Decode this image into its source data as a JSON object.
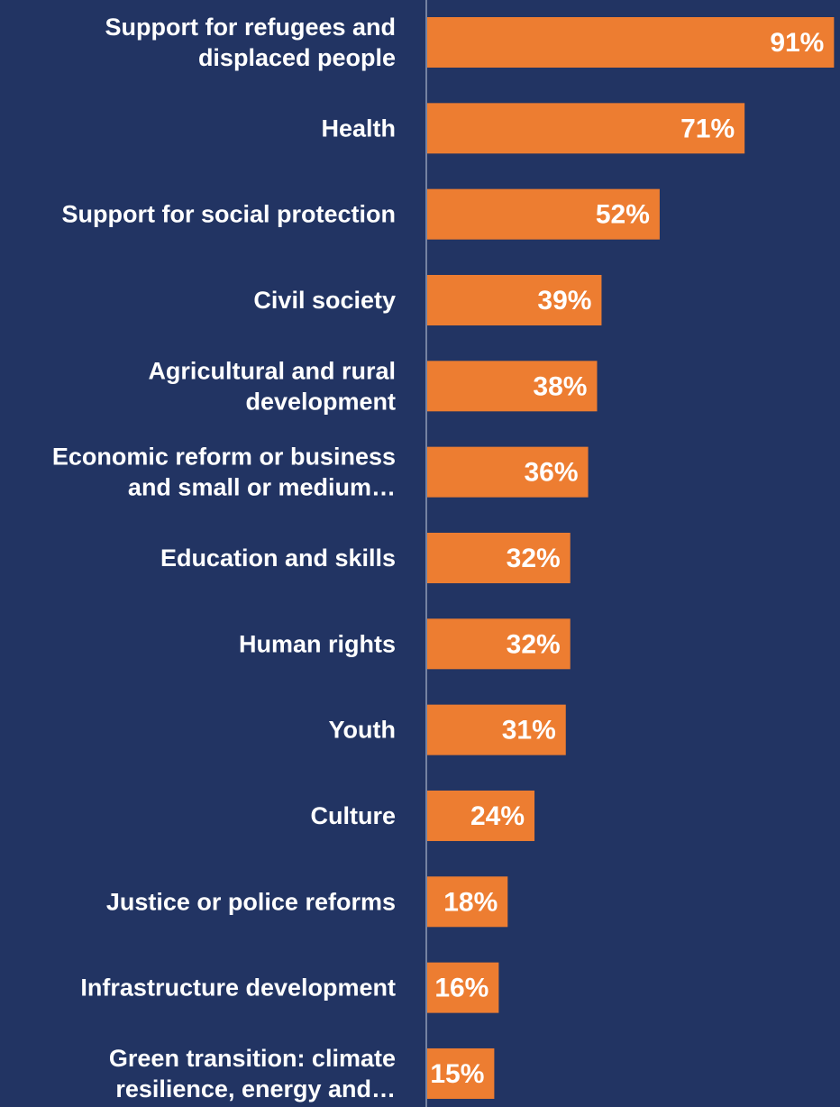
{
  "chart_data": {
    "type": "bar",
    "orientation": "horizontal",
    "categories": [
      "Support for refugees and displaced people",
      "Health",
      "Support for social protection",
      "Civil society",
      "Agricultural and rural development",
      "Economic reform or business and small or medium…",
      "Education and skills",
      "Human rights",
      "Youth",
      "Culture",
      "Justice or police reforms",
      "Infrastructure development",
      "Green transition: climate resilience, energy and…"
    ],
    "category_lines": [
      [
        "Support for refugees and",
        "displaced people"
      ],
      [
        "Health"
      ],
      [
        "Support for social protection"
      ],
      [
        "Civil society"
      ],
      [
        "Agricultural and rural",
        "development"
      ],
      [
        "Economic reform or business",
        "and small or medium…"
      ],
      [
        "Education and skills"
      ],
      [
        "Human rights"
      ],
      [
        "Youth"
      ],
      [
        "Culture"
      ],
      [
        "Justice or police reforms"
      ],
      [
        "Infrastructure development"
      ],
      [
        "Green transition: climate",
        "resilience, energy and…"
      ]
    ],
    "values": [
      91,
      71,
      52,
      39,
      38,
      36,
      32,
      32,
      31,
      24,
      18,
      16,
      15
    ],
    "value_labels": [
      "91%",
      "71%",
      "52%",
      "39%",
      "38%",
      "36%",
      "32%",
      "32%",
      "31%",
      "24%",
      "18%",
      "16%",
      "15%"
    ],
    "unit": "%",
    "xlim": [
      0,
      100
    ],
    "grid": false,
    "legend": "none",
    "colors": {
      "background": "#223463",
      "bar": "#ED7D31",
      "axis": "#c8d0e0",
      "text": "#ffffff"
    }
  }
}
